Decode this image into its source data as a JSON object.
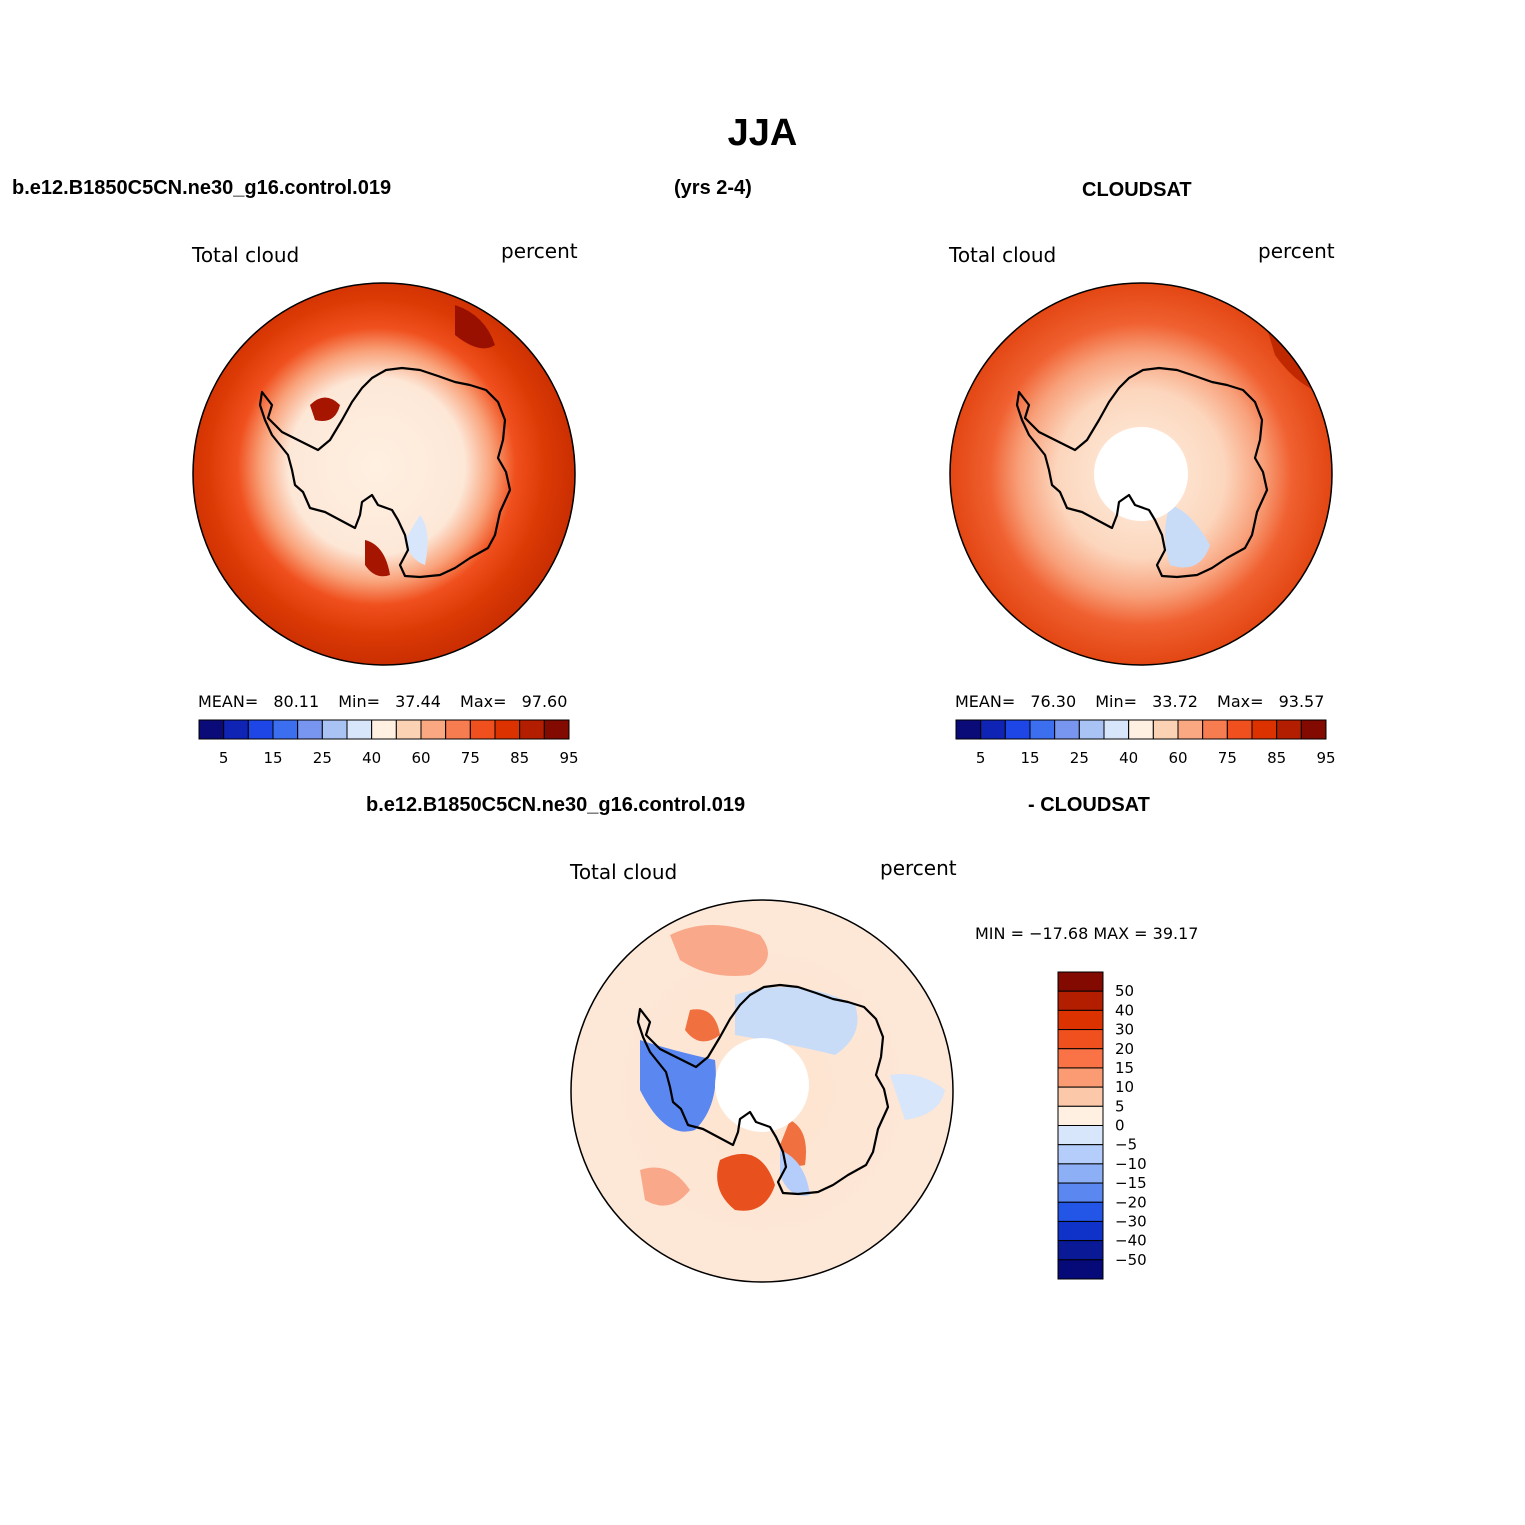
{
  "page": {
    "title": "JJA",
    "case_name": "b.e12.B1850C5CN.ne30_g16.control.019",
    "years": "(yrs 2-4)",
    "obs_name": "CLOUDSAT",
    "diff_case": "b.e12.B1850C5CN.ne30_g16.control.019",
    "diff_obs": "- CLOUDSAT"
  },
  "panels": [
    {
      "variable": "Total cloud",
      "units": "percent",
      "mean_label": "MEAN=",
      "mean": "80.11",
      "min_label": "Min=",
      "min": "37.44",
      "max_label": "Max=",
      "max": "97.60"
    },
    {
      "variable": "Total cloud",
      "units": "percent",
      "mean_label": "MEAN=",
      "mean": "76.30",
      "min_label": "Min=",
      "min": "33.72",
      "max_label": "Max=",
      "max": "93.57"
    }
  ],
  "diff_panel": {
    "variable": "Total cloud",
    "units": "percent",
    "minmax_text": "MIN = −17.68 MAX =  39.17"
  },
  "colorbar_main": {
    "colors": [
      "#0a0a78",
      "#0f23b4",
      "#1e46e6",
      "#3c6ef0",
      "#7896f0",
      "#aac3f5",
      "#d7e6fa",
      "#fff0e1",
      "#fcd2b4",
      "#faa882",
      "#f77d50",
      "#f0501e",
      "#dc3200",
      "#b41e00",
      "#820a00"
    ],
    "tick_labels": [
      "5",
      "15",
      "25",
      "40",
      "60",
      "75",
      "85",
      "95"
    ]
  },
  "colorbar_diff": {
    "colors": [
      "#820a00",
      "#b41e00",
      "#dc3200",
      "#f0501e",
      "#fa7346",
      "#fa9b73",
      "#fcc8aa",
      "#fff0e1",
      "#d7e6fa",
      "#b4cdfa",
      "#8caff5",
      "#5a87f0",
      "#2355e6",
      "#0f32c8",
      "#0a1996",
      "#050a78"
    ],
    "tick_labels": [
      "50",
      "40",
      "30",
      "20",
      "15",
      "10",
      "5",
      "0",
      "−5",
      "−10",
      "−15",
      "−20",
      "−30",
      "−40",
      "−50"
    ]
  },
  "colors": {
    "ocean_model": "#d23000",
    "ocean_obs": "#e23a0a",
    "diff_background": "#fde4d0",
    "coast": "#000000"
  }
}
